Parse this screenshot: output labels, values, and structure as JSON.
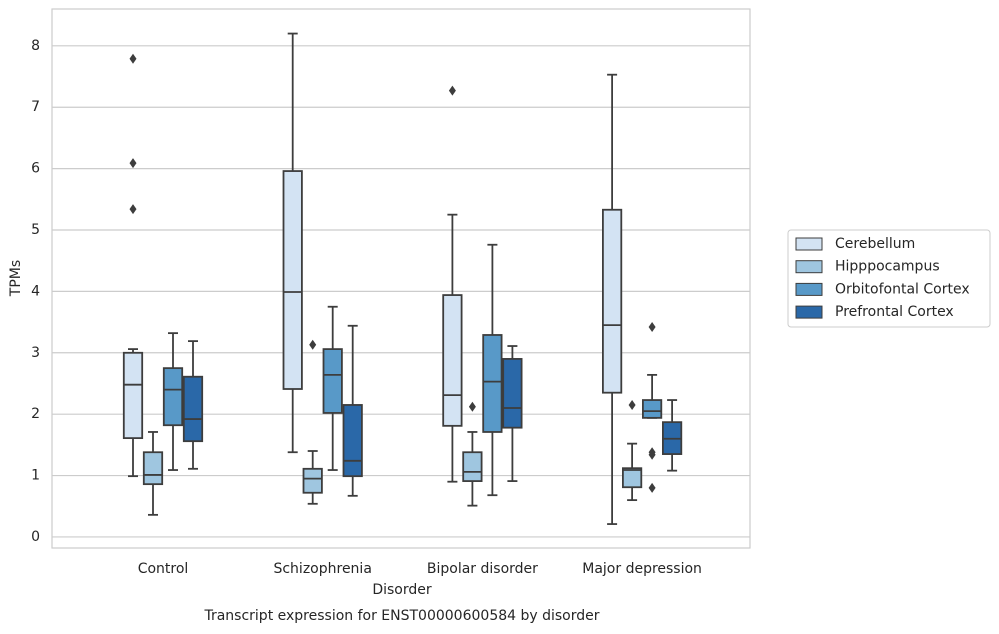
{
  "chart_data": {
    "type": "box",
    "title": "Transcript expression for ENST00000600584 by disorder",
    "x_label": "Disorder",
    "y_label": "TPMs",
    "categories": [
      "Control",
      "Schizophrenia",
      "Bipolar disorder",
      "Major depression"
    ],
    "ylim": [
      -0.18,
      8.6
    ],
    "yticks": [
      0,
      1,
      2,
      3,
      4,
      5,
      6,
      7,
      8
    ],
    "grid": true,
    "legend": "right",
    "series": [
      {
        "name": "Cerebellum",
        "color": "#d3e3f3",
        "values": [
          {
            "whislo": 0.99,
            "q1": 1.61,
            "med": 2.48,
            "q3": 3.0,
            "whishi": 3.06,
            "fliers": [
              7.79,
              6.09,
              5.34
            ]
          },
          {
            "whislo": 1.38,
            "q1": 2.41,
            "med": 3.99,
            "q3": 5.96,
            "whishi": 8.2,
            "fliers": []
          },
          {
            "whislo": 0.9,
            "q1": 1.81,
            "med": 2.31,
            "q3": 3.94,
            "whishi": 5.25,
            "fliers": [
              7.27
            ]
          },
          {
            "whislo": 0.21,
            "q1": 2.35,
            "med": 3.45,
            "q3": 5.33,
            "whishi": 7.53,
            "fliers": []
          }
        ]
      },
      {
        "name": "Hipppocampus",
        "color": "#9fc6e0",
        "values": [
          {
            "whislo": 0.36,
            "q1": 0.86,
            "med": 1.01,
            "q3": 1.38,
            "whishi": 1.71,
            "fliers": []
          },
          {
            "whislo": 0.54,
            "q1": 0.72,
            "med": 0.95,
            "q3": 1.11,
            "whishi": 1.4,
            "fliers": [
              3.13
            ]
          },
          {
            "whislo": 0.51,
            "q1": 0.91,
            "med": 1.06,
            "q3": 1.38,
            "whishi": 1.71,
            "fliers": [
              2.12
            ]
          },
          {
            "whislo": 0.6,
            "q1": 0.81,
            "med": 1.09,
            "q3": 1.12,
            "whishi": 1.52,
            "fliers": [
              2.15
            ]
          }
        ]
      },
      {
        "name": "Orbitofontal Cortex",
        "color": "#5899c8",
        "values": [
          {
            "whislo": 1.09,
            "q1": 1.82,
            "med": 2.4,
            "q3": 2.75,
            "whishi": 3.32,
            "fliers": []
          },
          {
            "whislo": 1.09,
            "q1": 2.02,
            "med": 2.64,
            "q3": 3.06,
            "whishi": 3.75,
            "fliers": []
          },
          {
            "whislo": 0.68,
            "q1": 1.71,
            "med": 2.53,
            "q3": 3.29,
            "whishi": 4.76,
            "fliers": []
          },
          {
            "whislo": 1.94,
            "q1": 1.94,
            "med": 2.05,
            "q3": 2.23,
            "whishi": 2.64,
            "fliers": [
              3.42,
              1.38,
              1.34,
              0.8
            ]
          }
        ]
      },
      {
        "name": "Prefrontal Cortex",
        "color": "#2a68a8",
        "values": [
          {
            "whislo": 1.11,
            "q1": 1.56,
            "med": 1.92,
            "q3": 2.61,
            "whishi": 3.19,
            "fliers": []
          },
          {
            "whislo": 0.67,
            "q1": 0.99,
            "med": 1.24,
            "q3": 2.15,
            "whishi": 3.44,
            "fliers": []
          },
          {
            "whislo": 0.91,
            "q1": 1.78,
            "med": 2.1,
            "q3": 2.9,
            "whishi": 3.11,
            "fliers": []
          },
          {
            "whislo": 1.08,
            "q1": 1.35,
            "med": 1.6,
            "q3": 1.87,
            "whishi": 2.23,
            "fliers": []
          }
        ]
      }
    ]
  }
}
